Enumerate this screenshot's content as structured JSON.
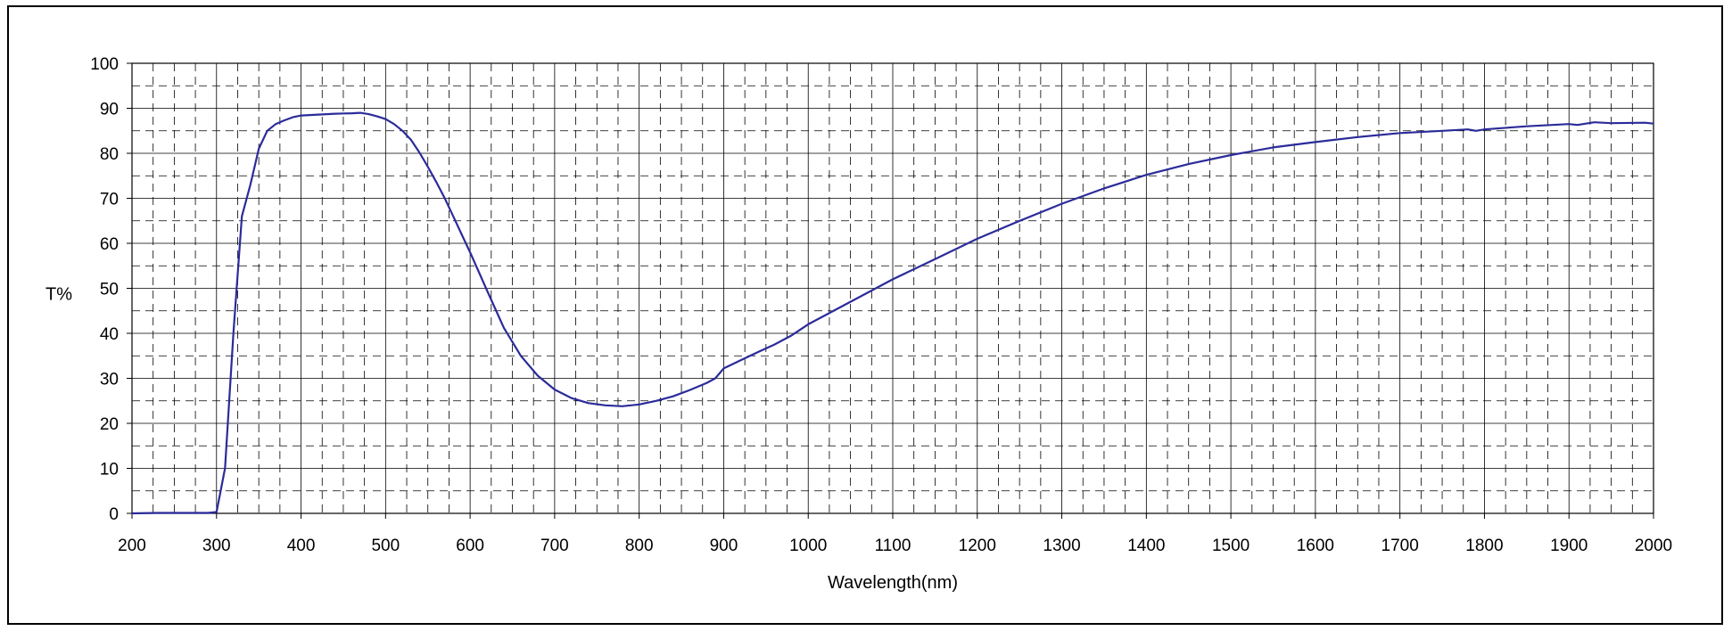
{
  "chart_data": {
    "type": "line",
    "title": "",
    "xlabel": "Wavelength(nm)",
    "ylabel": "T%",
    "xlim": [
      200,
      2000
    ],
    "ylim": [
      0,
      100
    ],
    "x_major_ticks": [
      200,
      300,
      400,
      500,
      600,
      700,
      800,
      900,
      1000,
      1100,
      1200,
      1300,
      1400,
      1500,
      1600,
      1700,
      1800,
      1900,
      2000
    ],
    "y_major_ticks": [
      0,
      10,
      20,
      30,
      40,
      50,
      60,
      70,
      80,
      90,
      100
    ],
    "grid": true,
    "line_color": "#2b2b9a",
    "series": [
      {
        "x": [
          200,
          230,
          260,
          290,
          300,
          310,
          320,
          330,
          340,
          350,
          360,
          370,
          380,
          390,
          400,
          420,
          440,
          460,
          470,
          480,
          490,
          500,
          510,
          520,
          530,
          540,
          550,
          560,
          570,
          580,
          590,
          600,
          620,
          640,
          660,
          680,
          700,
          720,
          740,
          760,
          780,
          800,
          820,
          840,
          860,
          880,
          890,
          900,
          920,
          940,
          960,
          980,
          1000,
          1050,
          1100,
          1150,
          1200,
          1250,
          1300,
          1350,
          1400,
          1450,
          1500,
          1550,
          1600,
          1650,
          1700,
          1750,
          1780,
          1790,
          1800,
          1850,
          1900,
          1910,
          1920,
          1930,
          1950,
          1990,
          2000
        ],
        "y": [
          0,
          0.1,
          0.1,
          0.1,
          0.3,
          10,
          40,
          66,
          73,
          81,
          85,
          86.5,
          87.3,
          88,
          88.4,
          88.6,
          88.8,
          88.9,
          89,
          88.7,
          88.2,
          87.6,
          86.5,
          85,
          83,
          80.2,
          77,
          73.6,
          70,
          66,
          62,
          58,
          49.5,
          41.2,
          35,
          30.6,
          27.5,
          25.6,
          24.5,
          24,
          23.8,
          24.2,
          25,
          26,
          27.4,
          29,
          30,
          32.2,
          34,
          35.8,
          37.5,
          39.5,
          42,
          47,
          52,
          56.5,
          61,
          65,
          68.8,
          72.2,
          75.2,
          77.6,
          79.6,
          81.3,
          82.5,
          83.6,
          84.5,
          85,
          85.3,
          85,
          85.3,
          86,
          86.5,
          86.3,
          86.6,
          86.9,
          86.7,
          86.8,
          86.6
        ]
      }
    ]
  }
}
